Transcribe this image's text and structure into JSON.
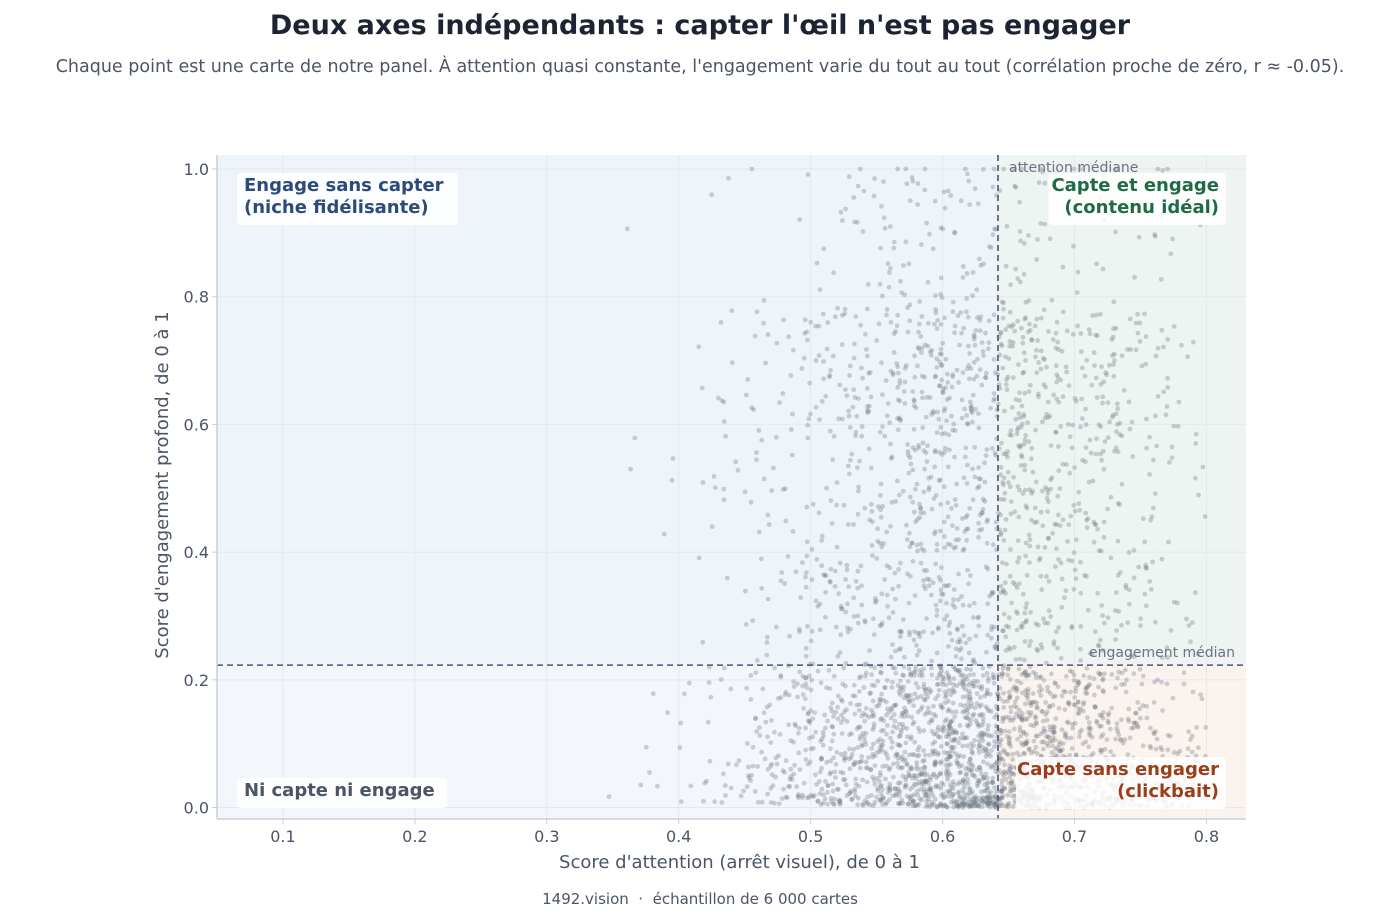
{
  "title": "Deux axes indépendants : capter l'œil n'est pas engager",
  "subtitle": "Chaque point est une carte de notre panel. À attention quasi constante, l'engagement varie du tout au tout (corrélation proche de zéro, r ≈ -0.05).",
  "footer": "1492.vision  ·  échantillon de 6 000 cartes",
  "colors": {
    "points": "#6b7280",
    "reference_lines": "#4a5578",
    "quadrant_top_left": "#eef4fa",
    "quadrant_top_right": "#eef4f1",
    "quadrant_bottom_left": "#f3f6fa",
    "quadrant_bottom_right": "#fbf4ee",
    "label_top_left": "#2c4a7a",
    "label_top_right": "#1f6b45",
    "label_bottom_left": "#4b5566",
    "label_bottom_right": "#9a3e1c"
  },
  "chart_data": {
    "type": "scatter",
    "xlabel": "Score d'attention (arrêt visuel), de 0 à 1",
    "ylabel": "Score d'engagement profond, de 0 à 1",
    "xlim": [
      0.05,
      0.83
    ],
    "ylim": [
      -0.018,
      1.022
    ],
    "xticks": [
      0.1,
      0.2,
      0.3,
      0.4,
      0.5,
      0.6,
      0.7,
      0.8
    ],
    "xtick_labels": [
      "0.1",
      "0.2",
      "0.3",
      "0.4",
      "0.5",
      "0.6",
      "0.7",
      "0.8"
    ],
    "yticks": [
      0.0,
      0.2,
      0.4,
      0.6,
      0.8,
      1.0
    ],
    "ytick_labels": [
      "0.0",
      "0.2",
      "0.4",
      "0.6",
      "0.8",
      "1.0"
    ],
    "grid": true,
    "correlation": "r ≈ -0.05",
    "sample_size": 6000,
    "reference_lines": {
      "x": {
        "value": 0.642,
        "label": "attention médiane"
      },
      "y": {
        "value": 0.223,
        "label": "engagement médian"
      }
    },
    "quadrants": {
      "top_left": {
        "lines": [
          "Engage sans capter",
          "(niche fidélisante)"
        ]
      },
      "top_right": {
        "lines": [
          "Capte et engage",
          "(contenu idéal)"
        ]
      },
      "bottom_left": {
        "lines": [
          "Ni capte ni engage"
        ]
      },
      "bottom_right": {
        "lines": [
          "Capte sans engager",
          "(clickbait)"
        ]
      }
    },
    "distribution": {
      "attention_center": 0.64,
      "attention_spread": 0.085,
      "attention_range": [
        0.25,
        0.8
      ],
      "engagement_shape": "right-skewed, concentrated near 0, capped at 1.0"
    }
  }
}
